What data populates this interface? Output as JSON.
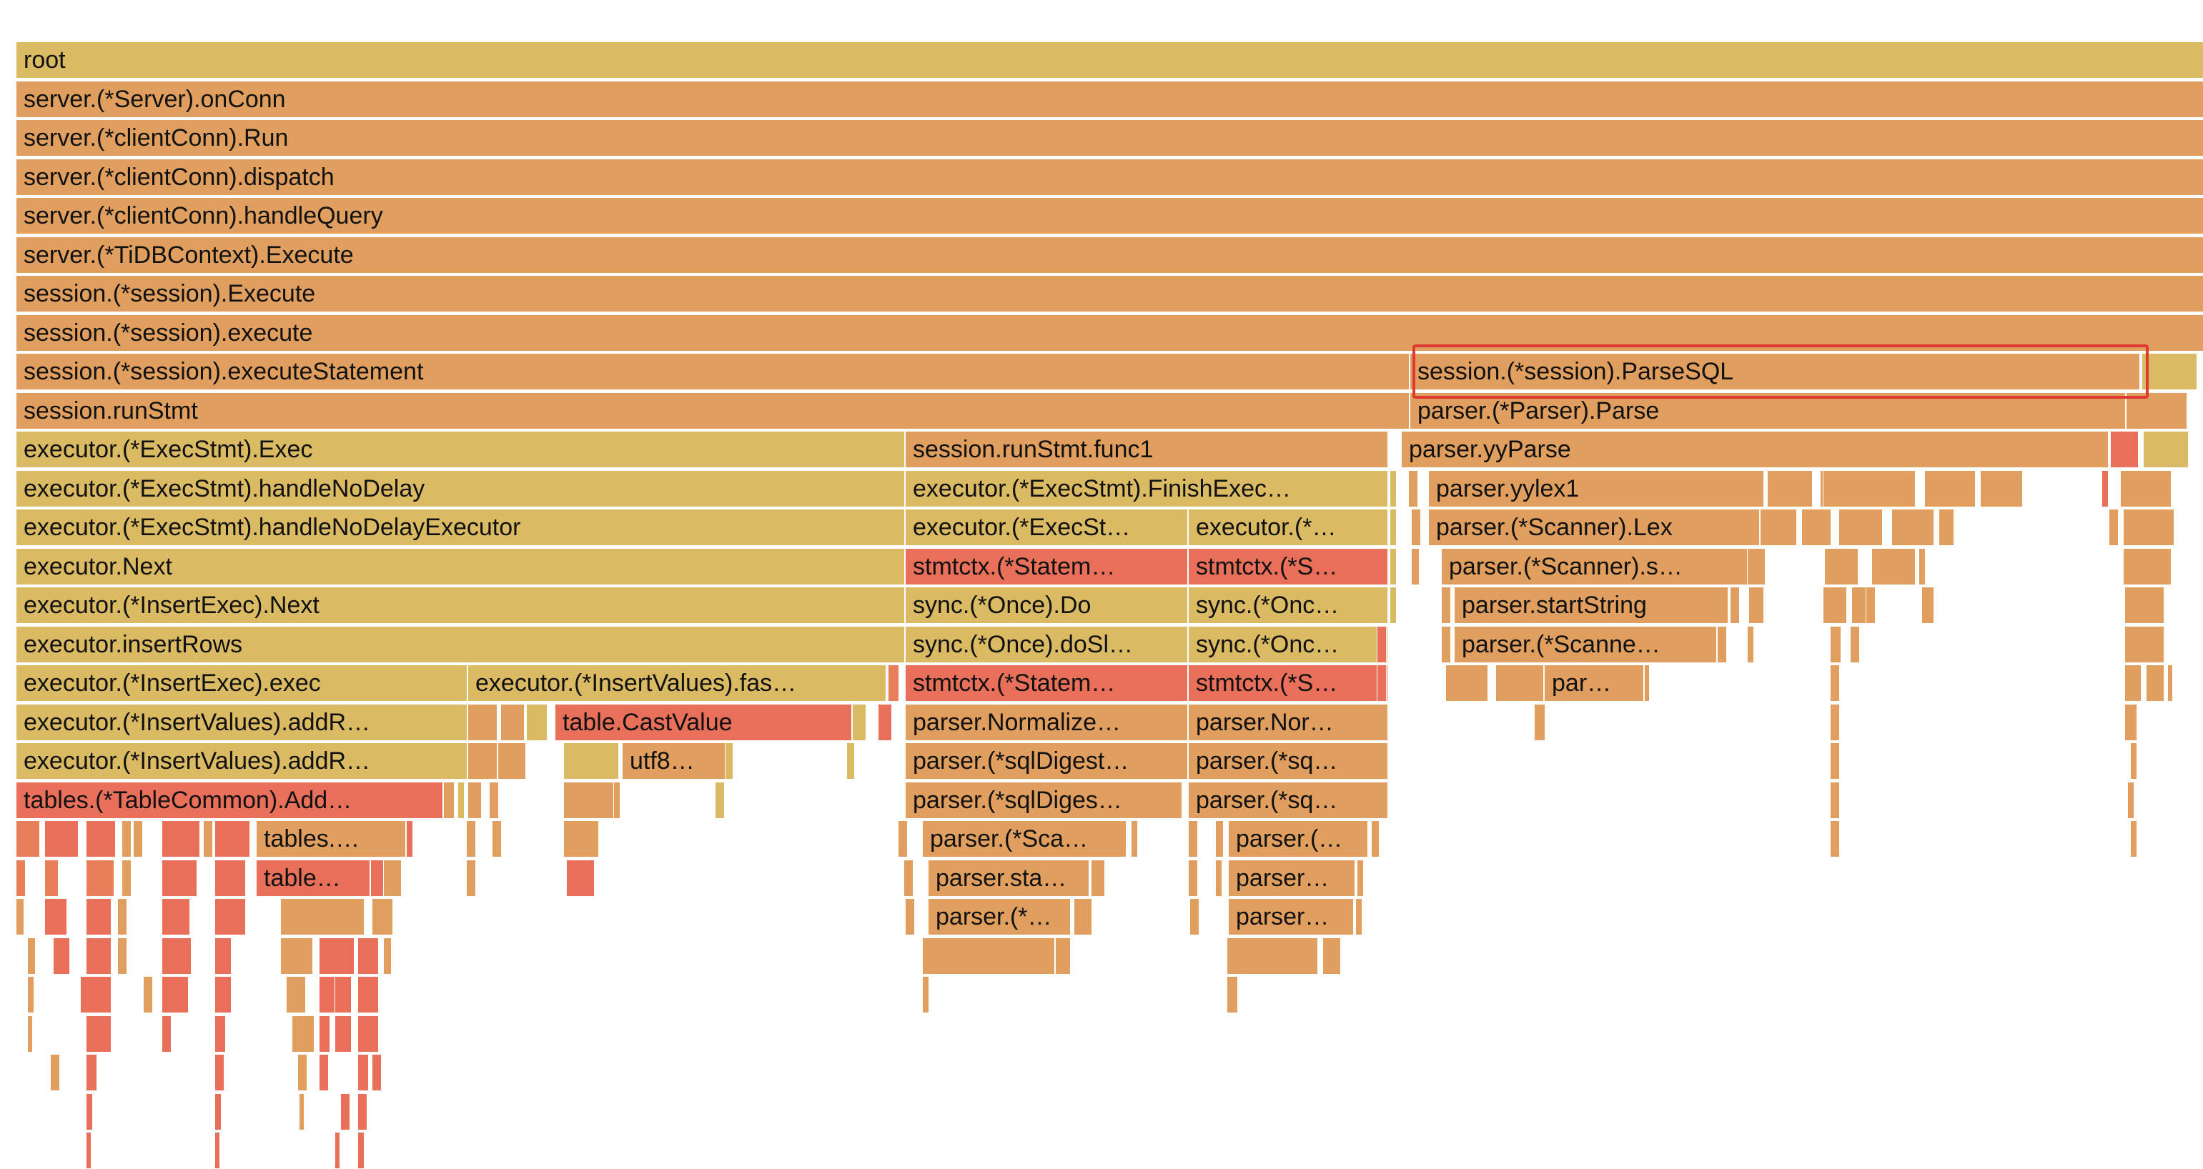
{
  "colors": {
    "yellow": "#dbba64",
    "orange": "#e09f5e",
    "orange2": "#e4a060",
    "red": "#e8705a",
    "redOrange": "#e87e5a",
    "highlight": "#e0392f"
  },
  "frames": [
    "root",
    "server.(*Server).onConn",
    "server.(*clientConn).Run",
    "server.(*clientConn).dispatch",
    "server.(*clientConn).handleQuery",
    "server.(*TiDBContext).Execute",
    "session.(*session).Execute",
    "session.(*session).execute",
    "session.(*session).executeStatement",
    "session.(*session).ParseSQL",
    "session.runStmt",
    "parser.(*Parser).Parse",
    "executor.(*ExecStmt).Exec",
    "session.runStmt.func1",
    "parser.yyParse",
    "executor.(*ExecStmt).handleNoDelay",
    "executor.(*ExecStmt).FinishExec…",
    "parser.yylex1",
    "executor.(*ExecStmt).handleNoDelayExecutor",
    "executor.(*ExecSt…",
    "executor.(*…",
    "parser.(*Scanner).Lex",
    "executor.Next",
    "stmtctx.(*Statem…",
    "stmtctx.(*S…",
    "parser.(*Scanner).s…",
    "executor.(*InsertExec).Next",
    "sync.(*Once).Do",
    "sync.(*Onc…",
    "parser.startString",
    "executor.insertRows",
    "sync.(*Once).doSl…",
    "sync.(*Onc…",
    "parser.(*Scanne…",
    "executor.(*InsertExec).exec",
    "executor.(*InsertValues).fas…",
    "stmtctx.(*Statem…",
    "stmtctx.(*S…",
    "par…",
    "executor.(*InsertValues).addR…",
    "table.CastValue",
    "parser.Normalize…",
    "parser.Nor…",
    "executor.(*InsertValues).addR…",
    "utf8…",
    "parser.(*sqlDigest…",
    "parser.(*sq…",
    "tables.(*TableCommon).Add…",
    "parser.(*sqlDiges…",
    "parser.(*sq…",
    "tables.…",
    "parser.(*Sca…",
    "parser.(…",
    "table…",
    "parser.sta…",
    "parser…",
    "parser.(*…",
    "parser…"
  ]
}
